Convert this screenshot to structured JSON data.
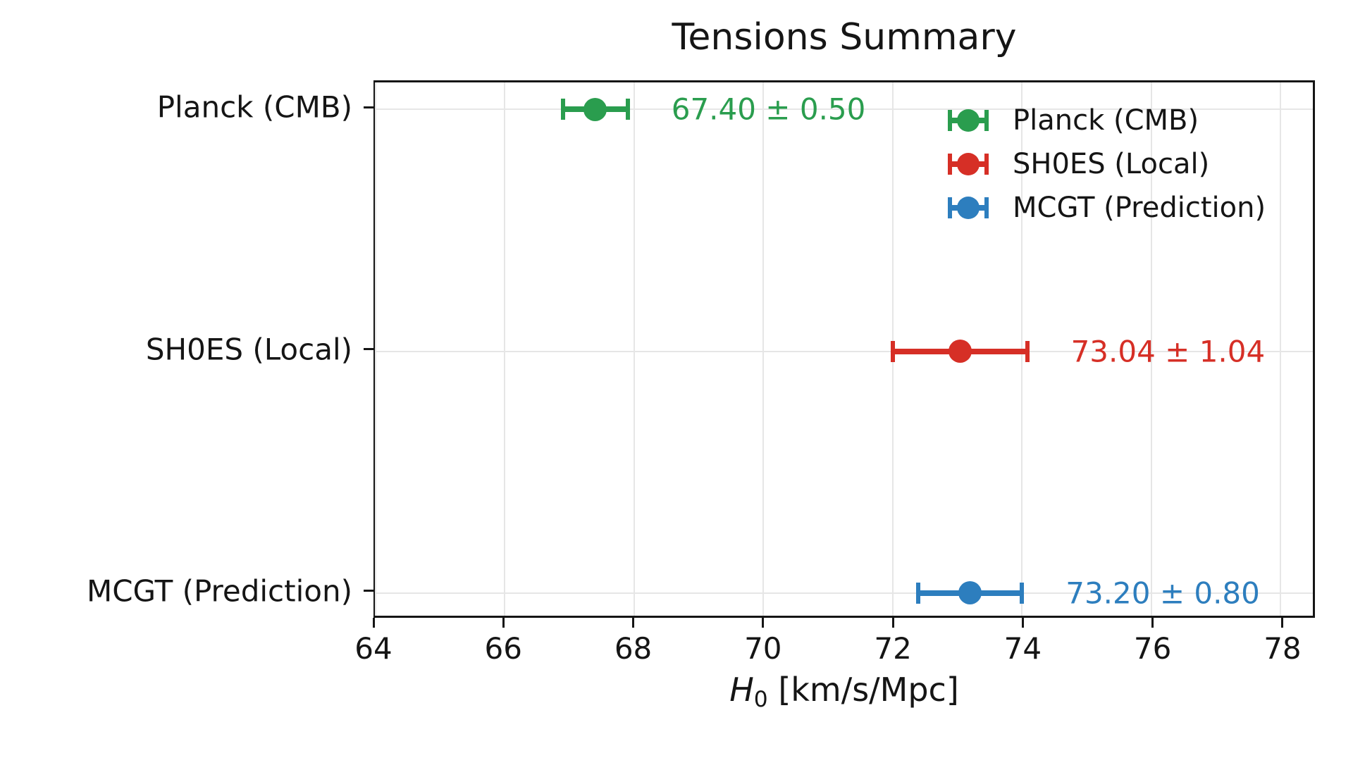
{
  "chart_data": {
    "type": "scatter",
    "title": "Tensions Summary",
    "xlabel": {
      "symbol": "H",
      "subscript": "0",
      "unit": "[km/s/Mpc]"
    },
    "xlim": [
      64,
      78.5
    ],
    "xticks": [
      64,
      66,
      68,
      70,
      72,
      74,
      76,
      78
    ],
    "grid": true,
    "legend_position": "upper right",
    "categories": [
      "Planck (CMB)",
      "SH0ES (Local)",
      "MCGT (Prediction)"
    ],
    "series": [
      {
        "name": "Planck (CMB)",
        "value": 67.4,
        "error": 0.5,
        "annotation": "67.40 ± 0.50",
        "color": "#2a9d4e"
      },
      {
        "name": "SH0ES (Local)",
        "value": 73.04,
        "error": 1.04,
        "annotation": "73.04 ± 1.04",
        "color": "#d62f26"
      },
      {
        "name": "MCGT (Prediction)",
        "value": 73.2,
        "error": 0.8,
        "annotation": "73.20 ± 0.80",
        "color": "#2d7ebe"
      }
    ],
    "legend_entries": [
      "Planck (CMB)",
      "SH0ES (Local)",
      "MCGT (Prediction)"
    ]
  }
}
